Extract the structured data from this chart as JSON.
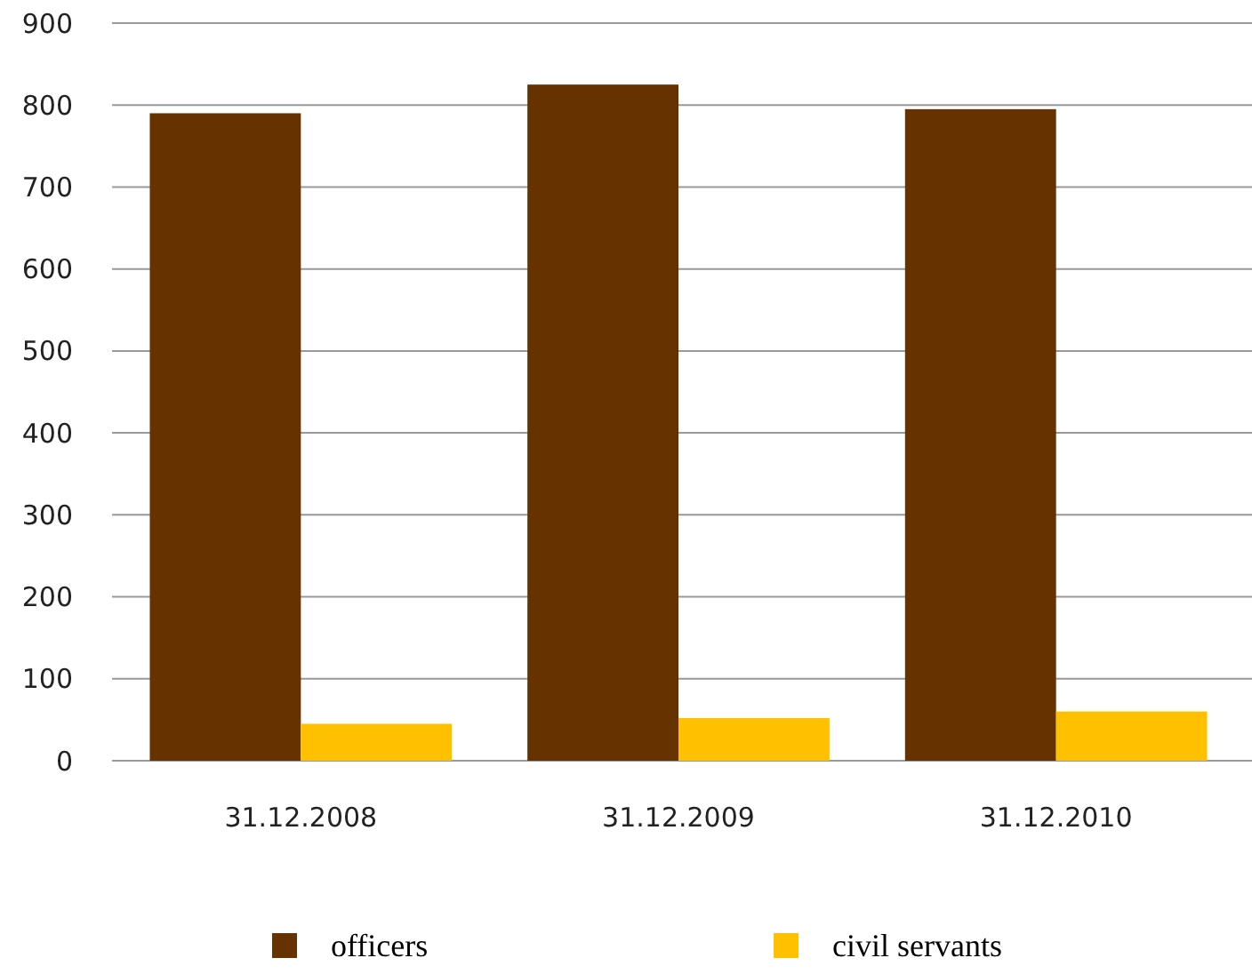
{
  "chart_data": {
    "type": "bar",
    "categories": [
      "31.12.2008",
      "31.12.2009",
      "31.12.2010"
    ],
    "series": [
      {
        "name": "officers",
        "color": "#663300",
        "values": [
          790,
          825,
          795
        ]
      },
      {
        "name": "civil servants",
        "color": "#ffc000",
        "values": [
          45,
          52,
          60
        ]
      }
    ],
    "ylim": [
      0,
      900
    ],
    "yticks": [
      0,
      100,
      200,
      300,
      400,
      500,
      600,
      700,
      800,
      900
    ],
    "grid": "y",
    "legend": "bottom"
  }
}
